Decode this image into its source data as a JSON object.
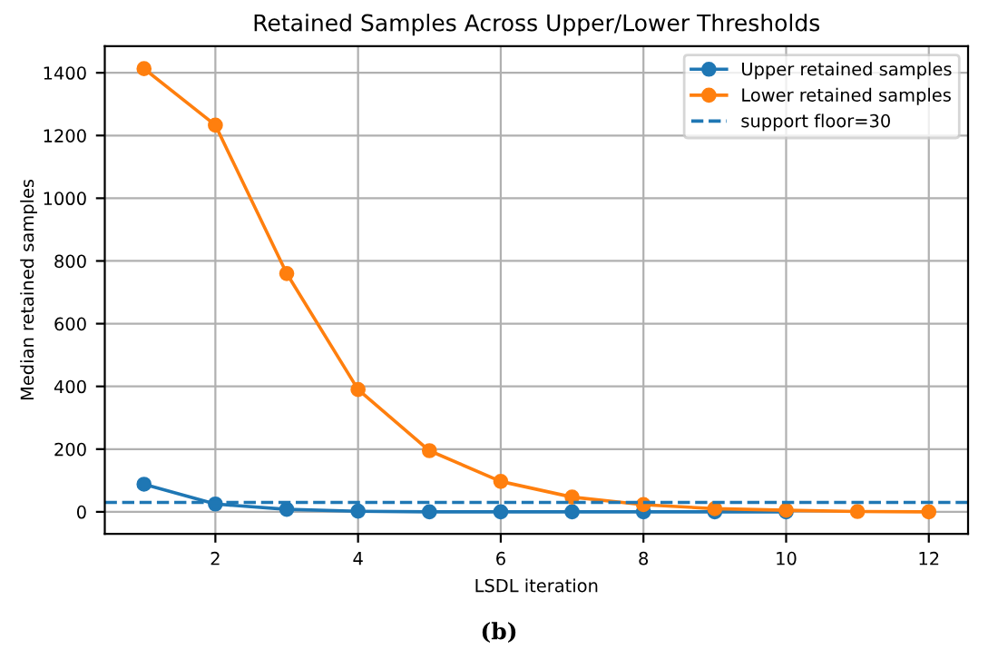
{
  "chart_data": {
    "type": "line",
    "title": "Retained Samples Across Upper/Lower Thresholds",
    "xlabel": "LSDL iteration",
    "ylabel": "Median retained samples",
    "series": [
      {
        "name": "Upper retained samples",
        "color": "#1f77b4",
        "x": [
          1,
          2,
          3,
          4,
          5,
          6,
          7,
          8,
          9,
          10
        ],
        "values": [
          88,
          25,
          8,
          2,
          0,
          0,
          0,
          0,
          0,
          0
        ]
      },
      {
        "name": "Lower retained samples",
        "color": "#ff7f0e",
        "x": [
          1,
          2,
          3,
          4,
          5,
          6,
          7,
          8,
          9,
          10,
          11,
          12
        ],
        "values": [
          1413,
          1233,
          760,
          390,
          195,
          97,
          47,
          23,
          10,
          5,
          1,
          0
        ]
      }
    ],
    "ref_lines": [
      {
        "axis": "y",
        "value": 30,
        "label": "support floor=30",
        "color": "#1f77b4",
        "line_style": "dashed"
      }
    ],
    "xlim": [
      0.45,
      12.55
    ],
    "ylim": [
      -70,
      1485
    ],
    "xticks": [
      2,
      4,
      6,
      8,
      10,
      12
    ],
    "yticks": [
      0,
      200,
      400,
      600,
      800,
      1000,
      1200,
      1400
    ],
    "grid": true,
    "legend": "top right",
    "marker": "circle",
    "line_style": "solid",
    "annotations": [
      "(b)"
    ]
  }
}
